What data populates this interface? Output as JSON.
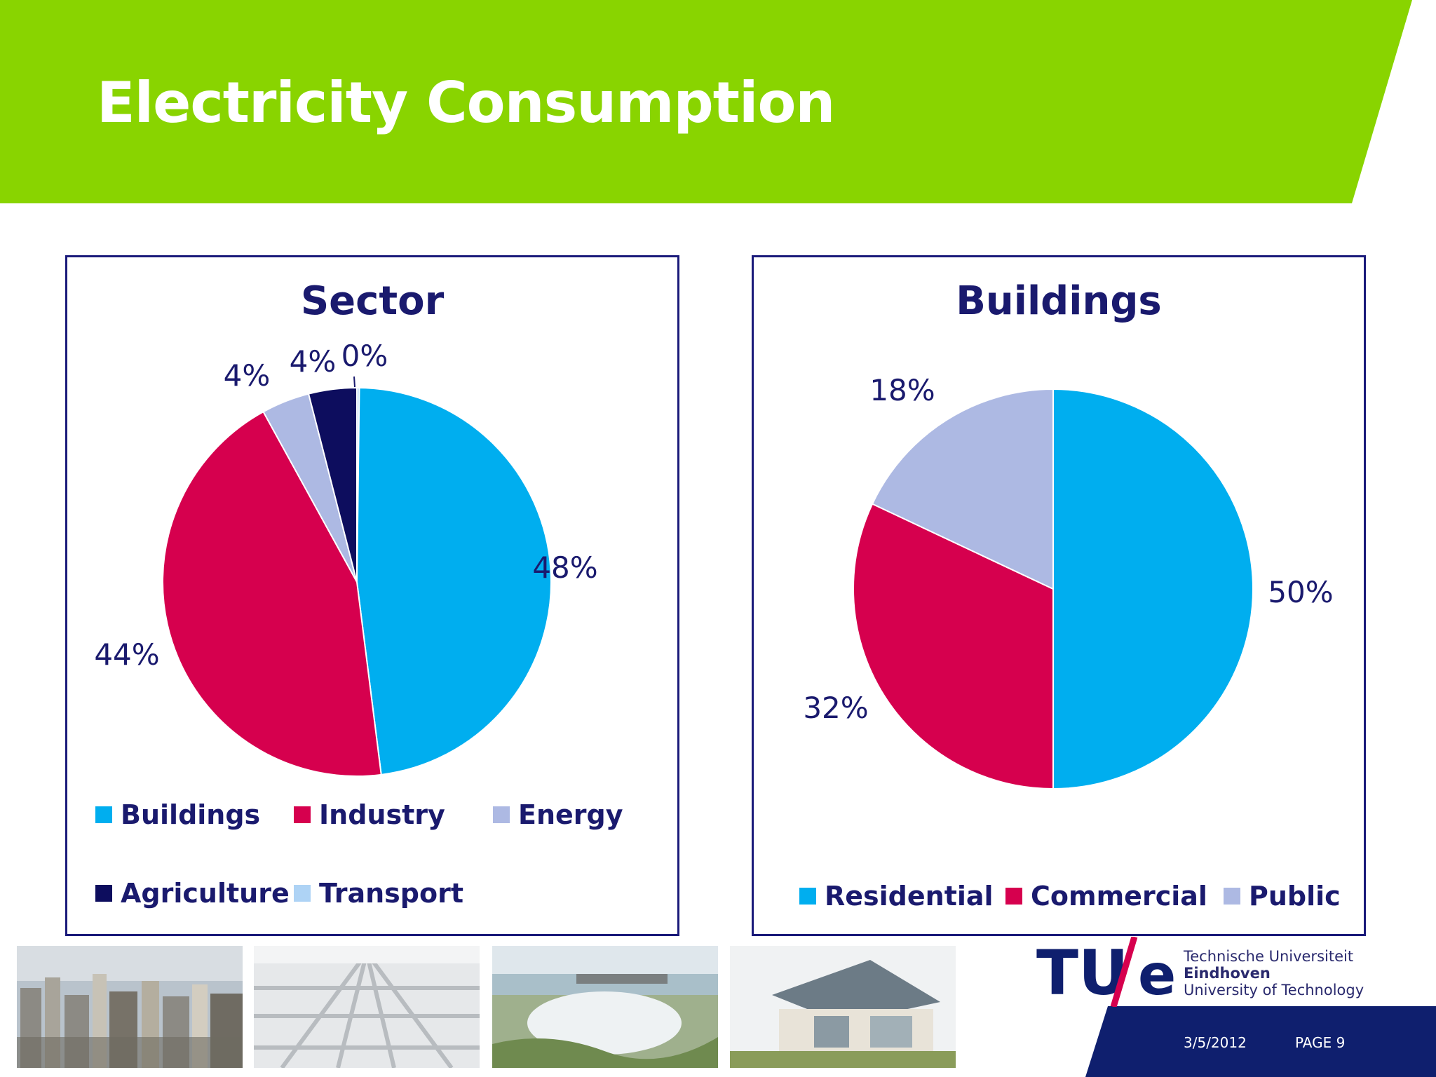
{
  "slide": {
    "title": "Electricity Consumption",
    "date": "3/5/2012",
    "page": "PAGE 9"
  },
  "colors": {
    "banner_green": "#89d400",
    "navy": "#0f1f6e",
    "title_text": "#1a1a6e",
    "cyan": "#00aeef",
    "crimson": "#d6004e",
    "lavender": "#adb9e3",
    "dark_navy": "#0d0d5e",
    "light_blue": "#aed3f5"
  },
  "logo": {
    "mark": "TU/e",
    "line1": "Technische Universiteit",
    "line2": "Eindhoven",
    "line3": "University of Technology"
  },
  "photos": [
    "city-skyline-photo",
    "solar-panel-field-photo",
    "hydroelectric-dam-photo",
    "solar-house-photo"
  ],
  "chart_data": [
    {
      "type": "pie",
      "title": "Sector",
      "categories": [
        "Buildings",
        "Industry",
        "Energy",
        "Agriculture",
        "Transport"
      ],
      "values": [
        48,
        44,
        4,
        4,
        0
      ],
      "labels": [
        "48%",
        "44%",
        "4%",
        "4%",
        "0%"
      ],
      "colors": [
        "#00aeef",
        "#d6004e",
        "#adb9e3",
        "#0d0d5e",
        "#aed3f5"
      ],
      "legend": "bottom"
    },
    {
      "type": "pie",
      "title": "Buildings",
      "categories": [
        "Residential",
        "Commercial",
        "Public"
      ],
      "values": [
        50,
        32,
        18
      ],
      "labels": [
        "50%",
        "32%",
        "18%"
      ],
      "colors": [
        "#00aeef",
        "#d6004e",
        "#adb9e3"
      ],
      "legend": "bottom"
    }
  ]
}
